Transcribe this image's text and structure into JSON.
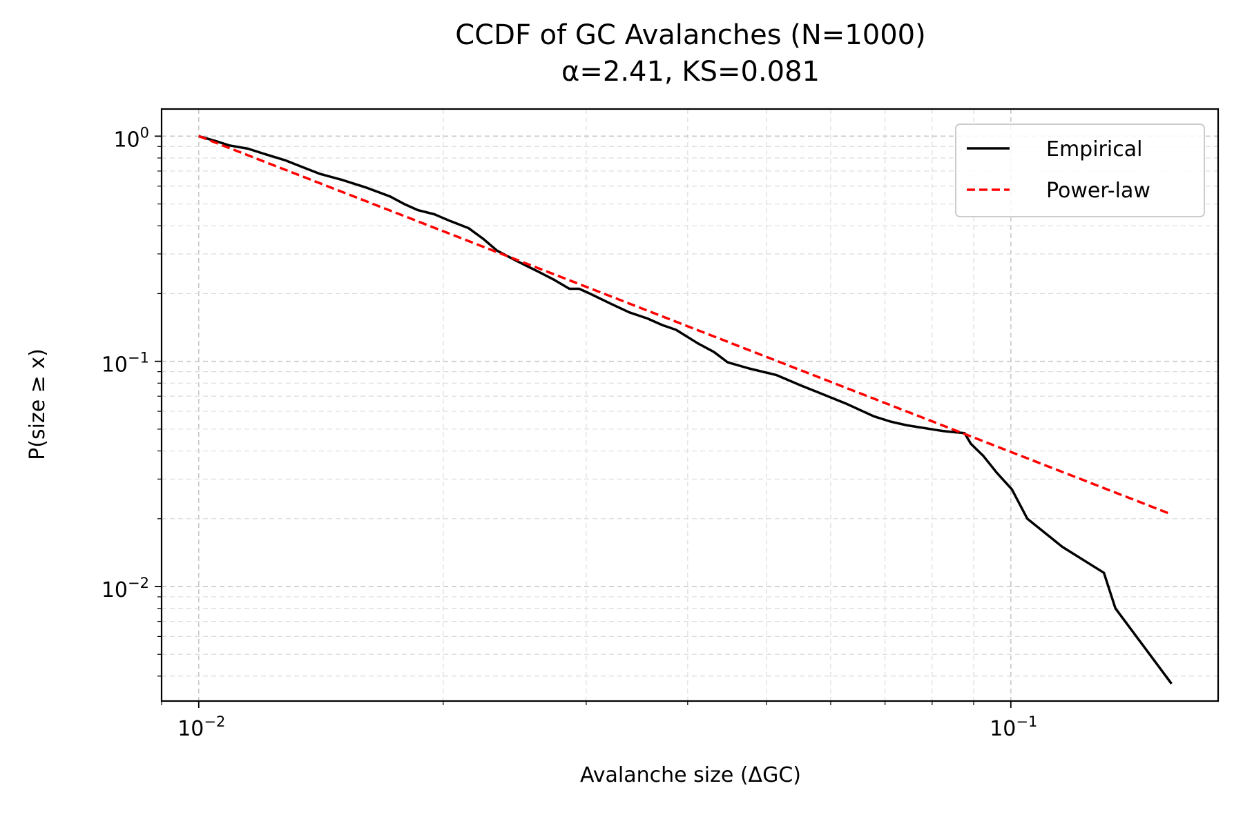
{
  "chart_data": {
    "type": "line",
    "title": "CCDF of GC Avalanches (N=1000)",
    "subtitle": "α=2.41, KS=0.081",
    "xlabel": "Avalanche size (ΔGC)",
    "ylabel": "P(size ≥ x)",
    "xscale": "log",
    "yscale": "log",
    "xlim": [
      0.009,
      0.18
    ],
    "ylim": [
      0.0031,
      1.32
    ],
    "grid": true,
    "legend_position": "top-right",
    "x_ticks": [
      {
        "value": 0.01,
        "base": "10",
        "exp": "−2"
      },
      {
        "value": 0.1,
        "base": "10",
        "exp": "−1"
      }
    ],
    "y_ticks": [
      {
        "value": 1,
        "base": "10",
        "exp": "0"
      },
      {
        "value": 0.1,
        "base": "10",
        "exp": "−1"
      },
      {
        "value": 0.01,
        "base": "10",
        "exp": "−2"
      }
    ],
    "series": [
      {
        "name": "Empirical",
        "color": "#000000",
        "style": "solid",
        "x": [
          0.01,
          0.0105,
          0.0109,
          0.0115,
          0.0121,
          0.0128,
          0.0134,
          0.0141,
          0.015,
          0.0161,
          0.0172,
          0.0179,
          0.0186,
          0.0195,
          0.0204,
          0.0215,
          0.0224,
          0.0233,
          0.0246,
          0.0262,
          0.0274,
          0.0286,
          0.0294,
          0.0303,
          0.0322,
          0.0339,
          0.0357,
          0.0372,
          0.0387,
          0.0412,
          0.0431,
          0.0448,
          0.0476,
          0.0514,
          0.0552,
          0.0578,
          0.0626,
          0.0678,
          0.0711,
          0.0745,
          0.0826,
          0.0877,
          0.0893,
          0.0925,
          0.0961,
          0.1003,
          0.1048,
          0.1157,
          0.1302,
          0.1345,
          0.1577
        ],
        "y": [
          1.0,
          0.95,
          0.91,
          0.88,
          0.83,
          0.78,
          0.73,
          0.68,
          0.64,
          0.59,
          0.54,
          0.5,
          0.47,
          0.45,
          0.42,
          0.39,
          0.35,
          0.31,
          0.28,
          0.25,
          0.23,
          0.21,
          0.21,
          0.2,
          0.18,
          0.165,
          0.155,
          0.145,
          0.138,
          0.12,
          0.11,
          0.099,
          0.093,
          0.087,
          0.078,
          0.073,
          0.065,
          0.057,
          0.054,
          0.052,
          0.049,
          0.048,
          0.043,
          0.038,
          0.032,
          0.027,
          0.02,
          0.015,
          0.0115,
          0.008,
          0.0037
        ]
      },
      {
        "name": "Power-law",
        "color": "#ff0000",
        "style": "dashed",
        "x": [
          0.01,
          0.1577
        ],
        "y": [
          1.0,
          0.0209
        ]
      }
    ]
  }
}
